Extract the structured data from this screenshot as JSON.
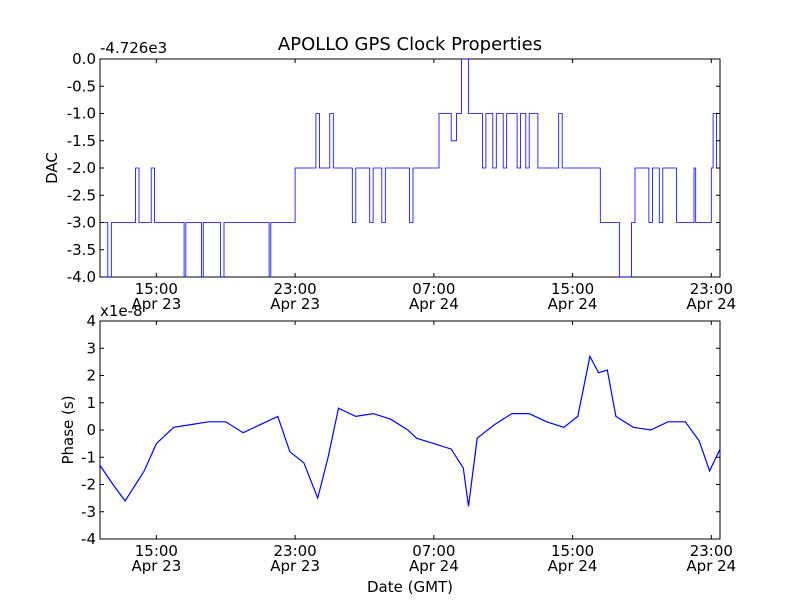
{
  "chart_data": {
    "title": "APOLLO GPS Clock Properties",
    "xlabel": "Date (GMT)",
    "x_ticks": [
      {
        "time": "15:00",
        "date": "Apr 23",
        "hours": 15
      },
      {
        "time": "23:00",
        "date": "Apr 23",
        "hours": 23
      },
      {
        "time": "07:00",
        "date": "Apr 24",
        "hours": 31
      },
      {
        "time": "15:00",
        "date": "Apr 24",
        "hours": 39
      },
      {
        "time": "23:00",
        "date": "Apr 24",
        "hours": 47
      }
    ],
    "xlim_hours": [
      11.75,
      47.5
    ],
    "line_color": "#0000ff",
    "panels": [
      {
        "type": "line",
        "ylabel": "DAC",
        "offset_text": "-4.726e3",
        "ylim": [
          -4.0,
          0.0
        ],
        "y_ticks": [
          "0.0",
          "-0.5",
          "-1.0",
          "-1.5",
          "-2.0",
          "-2.5",
          "-3.0",
          "-3.5",
          "-4.0"
        ],
        "series": [
          {
            "x": [
              11.75,
              12.2,
              12.2,
              12.4,
              12.4,
              13.8,
              13.8,
              14.0,
              14.0,
              14.7,
              14.7,
              14.9,
              14.9,
              16.6,
              16.6,
              16.7,
              16.7,
              17.6,
              17.6,
              17.7,
              17.7,
              18.7,
              18.7,
              18.9,
              18.9,
              21.5,
              21.5,
              21.6,
              21.6,
              23.0,
              23.0,
              24.2,
              24.2,
              24.4,
              24.4,
              25.0,
              25.0,
              25.2,
              25.2,
              26.3,
              26.3,
              26.5,
              26.5,
              27.3,
              27.3,
              27.5,
              27.5,
              28.0,
              28.0,
              28.2,
              28.2,
              29.6,
              29.6,
              29.8,
              29.8,
              31.3,
              31.3,
              32.0,
              32.0,
              32.3,
              32.3,
              32.6,
              32.6,
              33.0,
              33.0,
              33.8,
              33.8,
              34.0,
              34.0,
              34.4,
              34.4,
              34.6,
              34.6,
              35.0,
              35.0,
              35.2,
              35.2,
              35.8,
              35.8,
              36.0,
              36.0,
              36.3,
              36.3,
              36.5,
              36.5,
              37.0,
              37.0,
              38.2,
              38.2,
              38.4,
              38.4,
              40.6,
              40.6,
              41.7,
              41.7,
              42.4,
              42.4,
              42.6,
              42.6,
              43.4,
              43.4,
              43.6,
              43.6,
              44.0,
              44.0,
              44.2,
              44.2,
              45.0,
              45.0,
              46.0,
              46.0,
              46.1,
              46.1,
              47.0,
              47.0,
              47.1,
              47.1,
              47.3,
              47.3,
              47.5
            ],
            "y": [
              -3.0,
              -3.0,
              -4.0,
              -4.0,
              -3.0,
              -3.0,
              -2.0,
              -2.0,
              -3.0,
              -3.0,
              -2.0,
              -2.0,
              -3.0,
              -3.0,
              -4.0,
              -4.0,
              -3.0,
              -3.0,
              -4.0,
              -4.0,
              -3.0,
              -3.0,
              -4.0,
              -4.0,
              -3.0,
              -3.0,
              -4.0,
              -4.0,
              -3.0,
              -3.0,
              -2.0,
              -2.0,
              -1.0,
              -1.0,
              -2.0,
              -2.0,
              -1.0,
              -1.0,
              -2.0,
              -2.0,
              -3.0,
              -3.0,
              -2.0,
              -2.0,
              -3.0,
              -3.0,
              -2.0,
              -2.0,
              -3.0,
              -3.0,
              -2.0,
              -2.0,
              -3.0,
              -3.0,
              -2.0,
              -2.0,
              -1.0,
              -1.0,
              -1.5,
              -1.5,
              -1.0,
              -1.0,
              0.0,
              0.0,
              -1.0,
              -1.0,
              -2.0,
              -2.0,
              -1.0,
              -1.0,
              -2.0,
              -2.0,
              -1.0,
              -1.0,
              -2.0,
              -2.0,
              -1.0,
              -1.0,
              -2.0,
              -2.0,
              -1.0,
              -1.0,
              -2.0,
              -2.0,
              -1.0,
              -1.0,
              -2.0,
              -2.0,
              -1.0,
              -1.0,
              -2.0,
              -2.0,
              -3.0,
              -3.0,
              -4.0,
              -4.0,
              -3.0,
              -3.0,
              -2.0,
              -2.0,
              -3.0,
              -3.0,
              -2.0,
              -2.0,
              -3.0,
              -3.0,
              -2.0,
              -2.0,
              -3.0,
              -3.0,
              -2.0,
              -2.0,
              -3.0,
              -3.0,
              -2.0,
              -2.0,
              -1.0,
              -1.0,
              -2.0,
              -2.0
            ]
          }
        ]
      },
      {
        "type": "line",
        "ylabel": "Phase (s)",
        "offset_text": "x1e-8",
        "ylim": [
          -4,
          4
        ],
        "y_ticks": [
          "4",
          "3",
          "2",
          "1",
          "0",
          "-1",
          "-2",
          "-3",
          "-4"
        ],
        "series": [
          {
            "x": [
              11.75,
              12.5,
              13.2,
              13.8,
              14.3,
              15.0,
              16.0,
              17.0,
              18.0,
              19.0,
              20.0,
              21.0,
              22.0,
              22.7,
              23.5,
              24.3,
              24.9,
              25.5,
              26.5,
              27.5,
              28.5,
              29.5,
              30.0,
              31.0,
              32.0,
              32.7,
              33.0,
              33.5,
              34.5,
              35.5,
              36.5,
              37.5,
              38.5,
              39.3,
              40.0,
              40.5,
              41.0,
              41.5,
              42.5,
              43.5,
              44.5,
              45.5,
              46.3,
              46.9,
              47.5
            ],
            "y": [
              -1.3,
              -2.0,
              -2.6,
              -2.0,
              -1.5,
              -0.5,
              0.1,
              0.2,
              0.3,
              0.3,
              -0.1,
              0.2,
              0.5,
              -0.8,
              -1.2,
              -2.5,
              -1.0,
              0.8,
              0.5,
              0.6,
              0.4,
              0.0,
              -0.3,
              -0.5,
              -0.7,
              -1.4,
              -2.8,
              -0.3,
              0.2,
              0.6,
              0.6,
              0.3,
              0.1,
              0.5,
              2.7,
              2.1,
              2.2,
              0.5,
              0.1,
              0.0,
              0.3,
              0.3,
              -0.4,
              -1.5,
              -0.7
            ]
          }
        ]
      }
    ]
  }
}
